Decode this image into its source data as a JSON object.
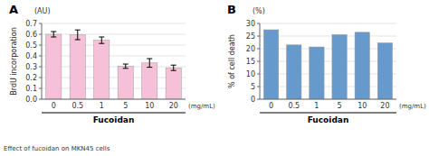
{
  "chart_data": [
    {
      "type": "bar",
      "title": "A",
      "subtitle": "(AU)",
      "categories": [
        "0",
        "0.5",
        "1",
        "5",
        "10",
        "20"
      ],
      "values": [
        0.6,
        0.595,
        0.545,
        0.305,
        0.335,
        0.29
      ],
      "errors": [
        0.025,
        0.045,
        0.03,
        0.02,
        0.04,
        0.025
      ],
      "color": "#F5C0D8",
      "y_label": "BrdU incorporation",
      "x_label": "Fucoidan",
      "annotations": [
        "(mg/mL)"
      ],
      "ylim": [
        0,
        0.7
      ],
      "yticks": [
        {
          "value": 0.0,
          "label": "0.0"
        },
        0.1,
        0.2,
        0.3,
        0.4,
        0.5,
        0.6,
        0.7
      ],
      "grid": true
    },
    {
      "type": "bar",
      "title": "B",
      "subtitle": "(%)",
      "categories": [
        "0",
        "0.5",
        "1",
        "5",
        "10",
        "20"
      ],
      "values": [
        27.5,
        21.5,
        20.7,
        25.6,
        26.5,
        22.3
      ],
      "color": "#6699CC",
      "y_label": "% of cell death",
      "x_label": "Fucoidan",
      "annotations": [
        "(mg/mL)"
      ],
      "ylim": [
        0,
        30
      ],
      "yticks": [
        0,
        5,
        10,
        15,
        20,
        25,
        30
      ],
      "grid": true
    }
  ],
  "caption": "Effect of fucoidan on MKN45 cells"
}
